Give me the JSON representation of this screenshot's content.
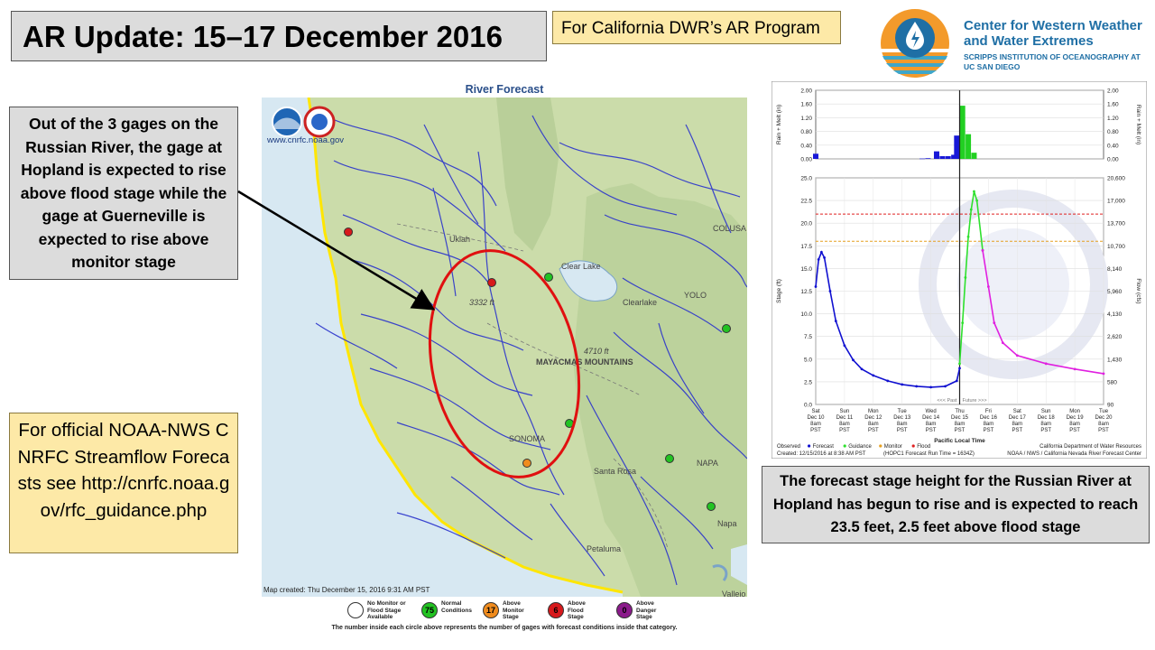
{
  "slide": {
    "title": "AR Update: 15–17 December 2016",
    "program_tag": "For California DWR’s AR Program"
  },
  "cw3e": {
    "name": "Center for Western Weather and Water Extremes",
    "subtitle": "SCRIPPS INSTITUTION OF OCEANOGRAPHY AT UC SAN DIEGO",
    "colors": {
      "blue": "#1f6fa5",
      "orange": "#f39a2b",
      "teal": "#3fa6c9"
    }
  },
  "callout_text": "Out of the 3 gages on the Russian River, the gage at Hopland is expected to rise above flood stage while the gage at Guerneville is expected to rise above monitor stage",
  "official_text": "For official NOAA-NWS CNRFC Streamflow Forecasts see http://cnrfc.noaa.gov/rfc_guidance.php",
  "map": {
    "title": "River Forecast",
    "url": "www.cnrfc.noaa.gov",
    "created": "Map created: Thu December 15, 2016 9:31 AM PST",
    "place_labels": [
      "Ukiah",
      "Clear Lake",
      "Clearlake",
      "Santa Rosa",
      "Petaluma",
      "Napa",
      "Vallejo",
      "SONOMA",
      "MAYACMAS MOUNTAINS",
      "COLUSA",
      "YOLO",
      "NAPA",
      "3332 ft",
      "4710 ft"
    ],
    "gauges": [
      {
        "category": "Above Flood Stage",
        "color": "#d7191c"
      },
      {
        "category": "Above Flood Stage",
        "color": "#d7191c"
      },
      {
        "category": "Normal Conditions",
        "color": "#22c322"
      },
      {
        "category": "Normal Conditions",
        "color": "#22c322"
      },
      {
        "category": "Normal Conditions",
        "color": "#22c322"
      },
      {
        "category": "Above Monitor Stage",
        "color": "#f08c1e"
      },
      {
        "category": "Normal Conditions",
        "color": "#22c322"
      },
      {
        "category": "Normal Conditions",
        "color": "#22c322"
      }
    ],
    "legend": [
      {
        "count": "",
        "label": "No Monitor or Flood Stage Available",
        "color": "#ffffff"
      },
      {
        "count": "75",
        "label": "Normal Conditions",
        "color": "#22c322"
      },
      {
        "count": "17",
        "label": "Above Monitor Stage",
        "color": "#f08c1e"
      },
      {
        "count": "6",
        "label": "Above Flood Stage",
        "color": "#d7191c"
      },
      {
        "count": "0",
        "label": "Above Danger Stage",
        "color": "#8b1a8b"
      }
    ],
    "note": "The number inside each circle above represents the number of gages with forecast conditions inside that category."
  },
  "hydrograph": {
    "precip_axis_label": "Rain + Melt (in)",
    "precip_ticks": [
      "2.00",
      "1.60",
      "1.20",
      "0.80",
      "0.40",
      "0.00"
    ],
    "stage_axis_label": "Stage (ft)",
    "flow_axis_label": "Flow (cfs)",
    "stage_ticks": [
      "25.0",
      "22.5",
      "20.0",
      "17.5",
      "15.0",
      "12.5",
      "10.0",
      "7.5",
      "5.0",
      "2.5",
      "0.0"
    ],
    "flow_ticks": [
      "20,600",
      "17,000",
      "13,700",
      "10,700",
      "8,140",
      "5,960",
      "4,130",
      "2,620",
      "1,430",
      "580",
      "90"
    ],
    "days": [
      [
        "Sat",
        "Dec 10",
        "8am",
        "PST"
      ],
      [
        "Sun",
        "Dec 11",
        "8am",
        "PST"
      ],
      [
        "Mon",
        "Dec 12",
        "8am",
        "PST"
      ],
      [
        "Tue",
        "Dec 13",
        "8am",
        "PST"
      ],
      [
        "Wed",
        "Dec 14",
        "8am",
        "PST"
      ],
      [
        "Thu",
        "Dec 15",
        "8am",
        "PST"
      ],
      [
        "Fri",
        "Dec 16",
        "8am",
        "PST"
      ],
      [
        "Sat",
        "Dec 17",
        "8am",
        "PST"
      ],
      [
        "Sun",
        "Dec 18",
        "8am",
        "PST"
      ],
      [
        "Mon",
        "Dec 19",
        "8am",
        "PST"
      ],
      [
        "Tue",
        "Dec 20",
        "8am",
        "PST"
      ]
    ],
    "x_axis_label": "Pacific Local Time",
    "past_label": "<<< Past",
    "future_label": "Future >>>",
    "legend": [
      "Observed",
      "Forecast",
      "Guidance",
      "Monitor",
      "Flood"
    ],
    "agency": "California Department of Water Resources",
    "created": "Created: 12/15/2016 at 8:38 AM PST",
    "run": "(HOPC1 Forecast Run Time = 1634Z)",
    "credit": "NOAA / NWS / California Nevada River Forecast Center",
    "flood_stage_ft": 21.0,
    "monitor_stage_ft": 18.0,
    "colors": {
      "observed": "#1010d0",
      "forecast": "#2ee02e",
      "guidance": "#e020e0",
      "flood": "#e02020",
      "monitor": "#e6a020"
    }
  },
  "chart_data": {
    "type": "line",
    "x_unit": "days since Sat Dec 10 8am PST",
    "series": [
      {
        "name": "Observed",
        "x": [
          0.0,
          0.1,
          0.2,
          0.3,
          0.5,
          0.7,
          1.0,
          1.3,
          1.6,
          2.0,
          2.5,
          3.0,
          3.5,
          4.0,
          4.5,
          4.9,
          5.0
        ],
        "y": [
          13.0,
          16.0,
          16.8,
          16.2,
          12.5,
          9.2,
          6.5,
          4.9,
          3.9,
          3.2,
          2.6,
          2.2,
          2.0,
          1.9,
          2.0,
          2.6,
          4.0
        ]
      },
      {
        "name": "Forecast",
        "x": [
          5.0,
          5.1,
          5.2,
          5.3,
          5.4,
          5.5,
          5.6,
          5.8
        ],
        "y": [
          4.5,
          9.0,
          14.0,
          18.5,
          21.5,
          23.5,
          22.5,
          17.0
        ]
      },
      {
        "name": "Guidance",
        "x": [
          5.8,
          6.0,
          6.2,
          6.5,
          7.0,
          8.0,
          9.0,
          10.0
        ],
        "y": [
          17.0,
          13.0,
          9.0,
          6.8,
          5.4,
          4.5,
          3.9,
          3.4
        ]
      }
    ],
    "precip": {
      "x": [
        0.0,
        3.7,
        3.9,
        4.2,
        4.4,
        4.6,
        4.8,
        4.9,
        5.1,
        5.3,
        5.5
      ],
      "y": [
        0.15,
        0.01,
        0.02,
        0.22,
        0.08,
        0.08,
        0.12,
        0.68,
        1.55,
        0.72,
        0.18
      ]
    },
    "ylim": [
      0.0,
      25.0
    ],
    "precip_ylim": [
      0.0,
      2.0
    ],
    "xlim": [
      0,
      10
    ]
  },
  "hydro_caption": "The forecast stage height for the Russian River at Hopland has begun to rise and is expected to reach 23.5 feet, 2.5 feet above flood stage"
}
